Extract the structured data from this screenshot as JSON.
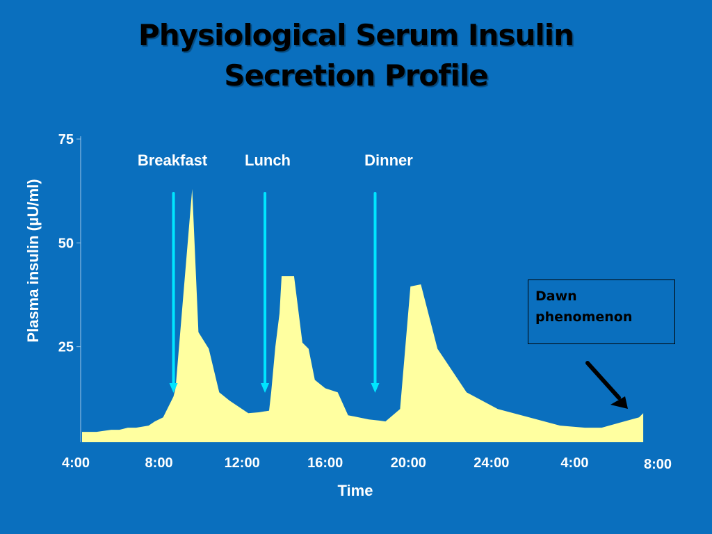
{
  "page": {
    "title_line1": "Physiological Serum Insulin",
    "title_line2": "Secretion Profile"
  },
  "colors": {
    "background": "#0a6fbe",
    "area_fill": "#ffffa0",
    "meal_arrow": "#00e5ff",
    "axis_text": "#ffffff",
    "title_text": "#000000"
  },
  "annotations": {
    "dawn": "Dawn\nphenomenon",
    "dawn_line1": "Dawn",
    "dawn_line2": "phenomenon"
  },
  "chart_data": {
    "type": "area",
    "title": "Physiological Serum Insulin Secretion Profile",
    "xlabel": "Time",
    "ylabel": "Plasma insulin (µU/ml)",
    "x_ticks": [
      "4:00",
      "8:00",
      "12:00",
      "16:00",
      "20:00",
      "24:00",
      "4:00",
      "8:00"
    ],
    "x_tick_hours": [
      4,
      8,
      12,
      16,
      20,
      24,
      28,
      32
    ],
    "y_ticks": [
      25,
      50,
      75
    ],
    "ylim": [
      2,
      75
    ],
    "xlim": [
      4,
      32
    ],
    "grid": false,
    "legend": "none",
    "series": [
      {
        "x": [
          4,
          4.7,
          5.4,
          5.8,
          6.2,
          6.6,
          7.2,
          7.5,
          7.9,
          8.4,
          8.5,
          9.3,
          9.6,
          10.1,
          10.6,
          11.1,
          12,
          12.5,
          13,
          13.1,
          13.3,
          13.5,
          13.6,
          14.2,
          14.6,
          14.9,
          15.2,
          15.7,
          16.3,
          16.8,
          17.8,
          18.3,
          18.6,
          19.3,
          19.8,
          20.3,
          21.1,
          22.5,
          24,
          27,
          28.2,
          28.3,
          29,
          30.8,
          31
        ],
        "y": [
          4.5,
          4.5,
          5,
          5,
          5.5,
          5.5,
          6,
          7,
          8,
          13,
          15,
          63,
          28.5,
          24.5,
          14,
          12,
          9,
          9.2,
          9.6,
          14,
          25,
          33,
          42,
          42,
          26,
          24.5,
          17,
          15,
          14,
          8.5,
          7.5,
          7.2,
          7,
          10,
          39.5,
          40,
          24.5,
          14,
          10,
          6,
          5.5,
          5.5,
          5.5,
          8,
          9
        ]
      }
    ],
    "meal_markers": [
      {
        "label": "Breakfast",
        "x": 8.4
      },
      {
        "label": "Lunch",
        "x": 12.8
      },
      {
        "label": "Dinner",
        "x": 18.1
      }
    ]
  }
}
